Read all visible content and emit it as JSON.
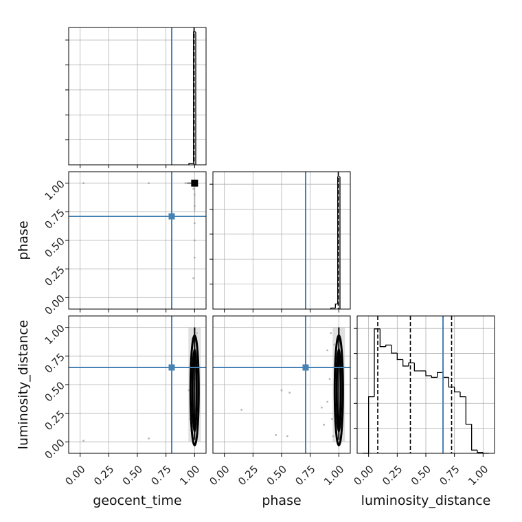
{
  "chart_data": {
    "type": "corner",
    "parameters": [
      "geocent_time",
      "phase",
      "luminosity_distance"
    ],
    "axis_range": [
      -0.1,
      1.1
    ],
    "tick_values": [
      0.0,
      0.25,
      0.5,
      0.75,
      1.0
    ],
    "tick_labels": [
      "0.00",
      "0.25",
      "0.50",
      "0.75",
      "1.00"
    ],
    "grid": true,
    "colors": {
      "truth": "#4682b4",
      "hist": "#000000",
      "grid": "#b0b0b0",
      "points": "#888888"
    },
    "truths": {
      "geocent_time": 0.8,
      "phase": 0.71,
      "luminosity_distance": 0.65
    },
    "quantiles": {
      "geocent_time": [
        0.995
      ],
      "phase": [
        0.995
      ],
      "luminosity_distance": [
        0.08,
        0.365,
        0.725
      ]
    },
    "histograms": {
      "geocent_time": {
        "bin_edges": [
          0.95,
          0.99,
          1.01
        ],
        "counts": [
          0.15,
          15.0
        ],
        "ymax": 15.5
      },
      "phase": {
        "bin_edges": [
          0.93,
          0.97,
          0.99,
          1.01
        ],
        "counts": [
          0.1,
          0.5,
          13.0
        ],
        "ymax": 13.5
      },
      "luminosity_distance": {
        "bin_edges": [
          -0.05,
          0.0,
          0.05,
          0.1,
          0.15,
          0.2,
          0.25,
          0.3,
          0.35,
          0.4,
          0.45,
          0.5,
          0.55,
          0.6,
          0.65,
          0.7,
          0.75,
          0.8,
          0.85,
          0.9,
          0.95,
          1.0,
          1.05
        ],
        "counts": [
          0,
          3.5,
          7.7,
          6.6,
          6.7,
          6.2,
          5.8,
          5.4,
          5.6,
          5.1,
          5.1,
          4.8,
          4.7,
          5.0,
          4.7,
          4.1,
          3.8,
          3.5,
          1.8,
          0.2,
          0.05,
          0
        ],
        "ymax": 8.5
      }
    },
    "scatter": {
      "phase_vs_geocent_time": {
        "points": [
          [
            0.03,
            1.0
          ],
          [
            0.6,
            1.0
          ],
          [
            0.92,
            1.0
          ],
          [
            0.95,
            1.0
          ],
          [
            0.97,
            1.0
          ],
          [
            0.99,
            0.95
          ],
          [
            1.0,
            0.9
          ],
          [
            1.0,
            0.8
          ],
          [
            1.0,
            0.65
          ],
          [
            1.0,
            0.5
          ],
          [
            1.0,
            0.35
          ],
          [
            0.99,
            0.17
          ],
          [
            1.0,
            0.98
          ]
        ],
        "density_center": [
          1.0,
          1.0
        ]
      },
      "luminosity_distance_vs_geocent_time": {
        "points": [
          [
            0.03,
            0.01
          ],
          [
            0.6,
            0.03
          ],
          [
            0.95,
            0.45
          ],
          [
            0.96,
            0.2
          ],
          [
            0.97,
            0.7
          ],
          [
            0.98,
            0.9
          ],
          [
            1.02,
            0.95
          ],
          [
            1.02,
            0.3
          ],
          [
            0.97,
            0.1
          ],
          [
            1.01,
            0.55
          ],
          [
            0.98,
            0.35
          ],
          [
            1.0,
            0.98
          ]
        ],
        "density_center": [
          1.0,
          0.45
        ]
      },
      "luminosity_distance_vs_phase": {
        "points": [
          [
            0.15,
            0.28
          ],
          [
            0.5,
            0.45
          ],
          [
            0.57,
            0.43
          ],
          [
            0.45,
            0.06
          ],
          [
            0.55,
            0.05
          ],
          [
            0.85,
            0.3
          ],
          [
            0.9,
            0.35
          ],
          [
            0.9,
            0.8
          ],
          [
            0.87,
            0.15
          ],
          [
            0.93,
            0.95
          ],
          [
            0.95,
            0.05
          ],
          [
            0.98,
            0.6
          ],
          [
            0.92,
            0.55
          ],
          [
            0.96,
            0.85
          ],
          [
            0.94,
            0.2
          ]
        ],
        "density_center": [
          1.0,
          0.45
        ]
      }
    }
  }
}
